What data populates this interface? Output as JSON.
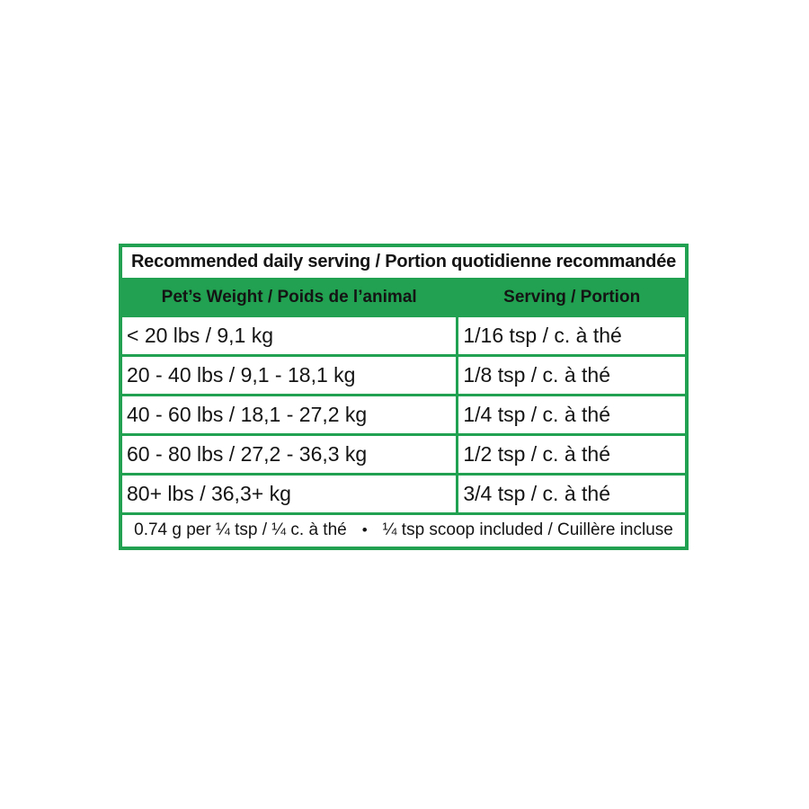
{
  "colors": {
    "green": "#21A151",
    "text": "#141414",
    "background": "#ffffff"
  },
  "table": {
    "title": "Recommended daily serving / Portion quotidienne recommandée",
    "columns": [
      "Pet’s Weight / Poids de l’animal",
      "Serving / Portion"
    ],
    "rows": [
      {
        "weight": "< 20 lbs / 9,1 kg",
        "serving": "1/16 tsp / c. à thé"
      },
      {
        "weight": "20 - 40 lbs / 9,1 - 18,1 kg",
        "serving": "1/8 tsp / c. à thé"
      },
      {
        "weight": "40 - 60 lbs / 18,1 - 27,2 kg",
        "serving": "1/4 tsp / c. à thé"
      },
      {
        "weight": "60 - 80 lbs / 27,2 - 36,3 kg",
        "serving": "1/2 tsp / c. à thé"
      },
      {
        "weight": "80+ lbs / 36,3+ kg",
        "serving": "3/4 tsp / c. à thé"
      }
    ],
    "footnote": {
      "left": "0.74 g per ¼ tsp / ¼ c. à thé",
      "separator": "•",
      "right": "¼ tsp scoop included / Cuillère incluse"
    }
  }
}
